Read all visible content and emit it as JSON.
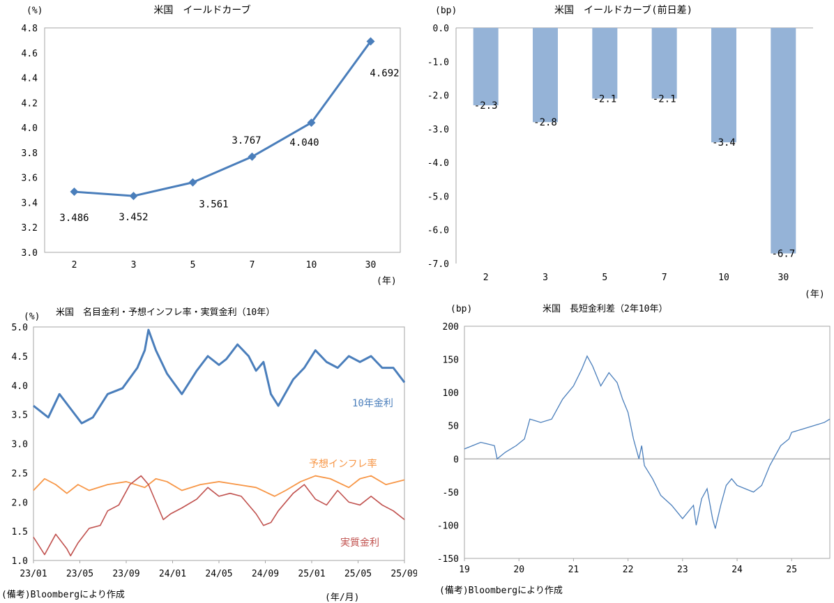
{
  "colors": {
    "blue": "#4A7EBB",
    "orange": "#F79646",
    "red": "#C0504D",
    "bar": "#95B3D7",
    "frame": "#A6A6A6",
    "zero": "#8C8C8C"
  },
  "notes": {
    "left": "(備考)Bloombergにより作成",
    "right": "(備考)Bloombergにより作成",
    "ym_unit": "(年/月)"
  },
  "chart_data": [
    {
      "id": "yield-curve",
      "type": "line",
      "title": "米国　イールドカーブ",
      "ylabel": "(%)",
      "xlabel": "(年)",
      "categories": [
        "2",
        "3",
        "5",
        "7",
        "10",
        "30"
      ],
      "values": [
        3.486,
        3.452,
        3.561,
        3.767,
        4.04,
        4.692
      ],
      "labels": [
        "3.486",
        "3.452",
        "3.561",
        "3.767",
        "4.040",
        "4.692"
      ],
      "yticks": [
        "3.0",
        "3.2",
        "3.4",
        "3.6",
        "3.8",
        "4.0",
        "4.2",
        "4.4",
        "4.6",
        "4.8"
      ],
      "ylim": [
        3.0,
        4.8
      ]
    },
    {
      "id": "yield-change",
      "type": "bar",
      "title": "米国　イールドカーブ(前日差)",
      "ylabel": "(bp)",
      "xlabel": "(年)",
      "categories": [
        "2",
        "3",
        "5",
        "7",
        "10",
        "30"
      ],
      "values": [
        -2.3,
        -2.8,
        -2.1,
        -2.1,
        -3.4,
        -6.7
      ],
      "labels": [
        "-2.3",
        "-2.8",
        "-2.1",
        "-2.1",
        "-3.4",
        "-6.7"
      ],
      "yticks": [
        "0.0",
        "-1.0",
        "-2.0",
        "-3.0",
        "-4.0",
        "-5.0",
        "-6.0",
        "-7.0"
      ],
      "ylim": [
        -7.0,
        0.0
      ]
    },
    {
      "id": "nominal-real",
      "type": "line",
      "title": "米国　名目金利・予想インフレ率・実質金利（10年）",
      "ylabel": "(%)",
      "xticks": [
        "23/01",
        "23/05",
        "23/09",
        "24/01",
        "24/05",
        "24/09",
        "25/01",
        "25/05",
        "25/09"
      ],
      "yticks": [
        "1.0",
        "1.5",
        "2.0",
        "2.5",
        "3.0",
        "3.5",
        "4.0",
        "4.5",
        "5.0"
      ],
      "ylim": [
        1.0,
        5.0
      ],
      "series": [
        {
          "name": "10年金利",
          "x": [
            0,
            0.04,
            0.07,
            0.1,
            0.13,
            0.16,
            0.2,
            0.24,
            0.28,
            0.3,
            0.31,
            0.33,
            0.36,
            0.4,
            0.44,
            0.47,
            0.5,
            0.52,
            0.55,
            0.58,
            0.6,
            0.62,
            0.64,
            0.66,
            0.7,
            0.73,
            0.76,
            0.79,
            0.82,
            0.85,
            0.88,
            0.91,
            0.94,
            0.97,
            1.0
          ],
          "values": [
            3.65,
            3.45,
            3.85,
            3.6,
            3.35,
            3.45,
            3.85,
            3.95,
            4.3,
            4.6,
            4.95,
            4.6,
            4.2,
            3.85,
            4.25,
            4.5,
            4.35,
            4.45,
            4.7,
            4.5,
            4.25,
            4.4,
            3.85,
            3.65,
            4.1,
            4.3,
            4.6,
            4.4,
            4.3,
            4.5,
            4.4,
            4.5,
            4.3,
            4.3,
            4.05
          ]
        },
        {
          "name": "予想インフレ率",
          "x": [
            0,
            0.03,
            0.06,
            0.09,
            0.12,
            0.15,
            0.2,
            0.25,
            0.3,
            0.33,
            0.36,
            0.4,
            0.45,
            0.5,
            0.55,
            0.6,
            0.65,
            0.68,
            0.72,
            0.76,
            0.8,
            0.85,
            0.88,
            0.91,
            0.95,
            1.0
          ],
          "values": [
            2.2,
            2.4,
            2.3,
            2.15,
            2.3,
            2.2,
            2.3,
            2.35,
            2.25,
            2.4,
            2.35,
            2.2,
            2.3,
            2.35,
            2.3,
            2.25,
            2.1,
            2.2,
            2.35,
            2.45,
            2.4,
            2.25,
            2.4,
            2.45,
            2.3,
            2.38
          ]
        },
        {
          "name": "実質金利",
          "x": [
            0,
            0.03,
            0.06,
            0.09,
            0.1,
            0.12,
            0.15,
            0.18,
            0.2,
            0.23,
            0.26,
            0.29,
            0.31,
            0.33,
            0.35,
            0.37,
            0.4,
            0.44,
            0.47,
            0.5,
            0.53,
            0.56,
            0.6,
            0.62,
            0.64,
            0.66,
            0.7,
            0.73,
            0.76,
            0.79,
            0.82,
            0.85,
            0.88,
            0.91,
            0.94,
            0.97,
            1.0
          ],
          "values": [
            1.4,
            1.1,
            1.45,
            1.2,
            1.08,
            1.3,
            1.55,
            1.6,
            1.85,
            1.95,
            2.3,
            2.45,
            2.3,
            2.0,
            1.7,
            1.8,
            1.9,
            2.05,
            2.25,
            2.1,
            2.15,
            2.1,
            1.8,
            1.6,
            1.65,
            1.85,
            2.15,
            2.3,
            2.05,
            1.95,
            2.2,
            2.0,
            1.95,
            2.1,
            1.95,
            1.85,
            1.7
          ]
        }
      ],
      "legend": [
        "10年金利",
        "予想インフレ率",
        "実質金利"
      ]
    },
    {
      "id": "spread",
      "type": "line",
      "title": "米国　長短金利差（2年10年）",
      "ylabel": "(bp)",
      "xticks": [
        "19",
        "20",
        "21",
        "22",
        "23",
        "24",
        "25"
      ],
      "yticks": [
        "200",
        "150",
        "100",
        "50",
        "0",
        "-50",
        "-100",
        "-150"
      ],
      "ylim": [
        -150,
        200
      ],
      "xlim": [
        19,
        25.7
      ],
      "series": [
        {
          "name": "2年10年",
          "x": [
            19.0,
            19.3,
            19.55,
            19.6,
            19.75,
            19.95,
            20.1,
            20.2,
            20.4,
            20.6,
            20.8,
            21.0,
            21.15,
            21.25,
            21.35,
            21.5,
            21.65,
            21.8,
            21.9,
            22.0,
            22.1,
            22.2,
            22.25,
            22.3,
            22.45,
            22.6,
            22.8,
            23.0,
            23.2,
            23.25,
            23.35,
            23.45,
            23.55,
            23.6,
            23.7,
            23.8,
            23.9,
            24.0,
            24.15,
            24.3,
            24.45,
            24.6,
            24.8,
            24.95,
            25.0,
            25.2,
            25.4,
            25.6,
            25.7
          ],
          "values": [
            15,
            25,
            20,
            0,
            10,
            20,
            30,
            60,
            55,
            60,
            90,
            110,
            135,
            155,
            140,
            110,
            130,
            115,
            90,
            70,
            30,
            0,
            20,
            -10,
            -30,
            -55,
            -70,
            -90,
            -70,
            -100,
            -60,
            -45,
            -90,
            -105,
            -70,
            -40,
            -30,
            -40,
            -45,
            -50,
            -40,
            -10,
            20,
            30,
            40,
            45,
            50,
            55,
            60
          ]
        }
      ]
    }
  ]
}
